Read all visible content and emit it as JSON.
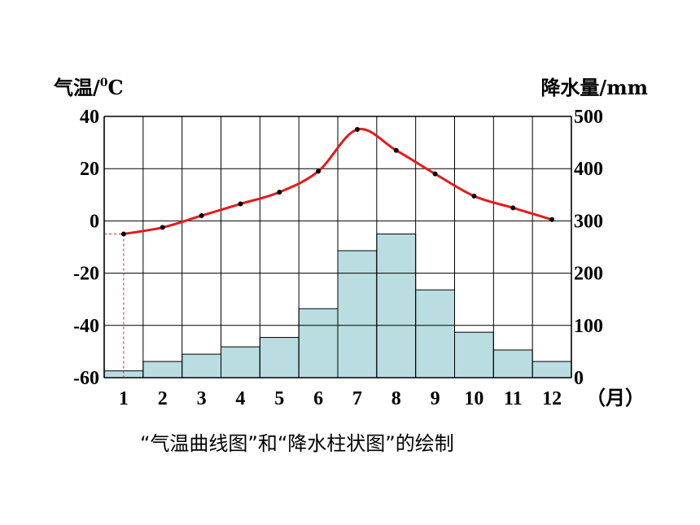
{
  "chart_data": {
    "type": "bar+line",
    "categories": [
      "1",
      "2",
      "3",
      "4",
      "5",
      "6",
      "7",
      "8",
      "9",
      "10",
      "11",
      "12"
    ],
    "month_unit_label": "（月）",
    "temperature": {
      "axis_label_parts": [
        "气温/",
        "0",
        "C"
      ],
      "ylim": [
        -60,
        40
      ],
      "ticks": [
        "40",
        "20",
        "0",
        "-20",
        "-40",
        "-60"
      ],
      "values": [
        -5,
        -2.5,
        2,
        6.5,
        11,
        19,
        35,
        27,
        18,
        9.5,
        5,
        0.5
      ],
      "color": "#e11b1b"
    },
    "precipitation": {
      "axis_label": "降水量/mm",
      "ylim": [
        0,
        500
      ],
      "ticks": [
        "500",
        "400",
        "300",
        "200",
        "100",
        "0"
      ],
      "values": [
        13,
        31,
        45,
        59,
        77,
        132,
        243,
        275,
        168,
        87,
        53,
        31
      ],
      "bar_color": "#b9dde0"
    },
    "grid": true,
    "reference_value": {
      "month_index": 0,
      "temperature": -5
    }
  },
  "caption": "“气温曲线图”和“降水柱状图”的绘制"
}
